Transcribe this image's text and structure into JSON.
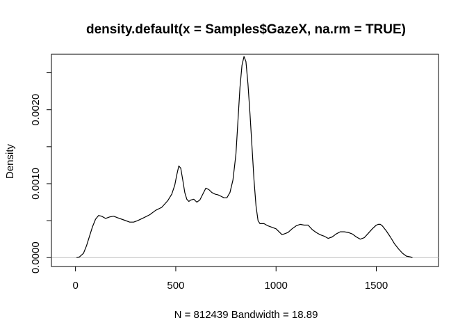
{
  "chart_data": {
    "type": "line",
    "title": "density.default(x = Samples$GazeX, na.rm = TRUE)",
    "xlabel": "N = 812439   Bandwidth = 18.89",
    "ylabel": "Density",
    "xlim": [
      -120,
      1810
    ],
    "ylim": [
      -0.00012,
      0.00275
    ],
    "x_ticks": [
      0,
      500,
      1000,
      1500
    ],
    "x_tick_labels": [
      "0",
      "500",
      "1000",
      "1500"
    ],
    "y_ticks": [
      0.0,
      0.0005,
      0.001,
      0.0015,
      0.002,
      0.0025
    ],
    "y_tick_labels": [
      "0.0000",
      "",
      "0.0010",
      "",
      "0.0020",
      ""
    ],
    "baseline": 0,
    "grid": false,
    "line_color": "#000000",
    "baseline_color": "#bebebe",
    "series": [
      {
        "x": [
          5,
          20,
          40,
          55,
          70,
          85,
          100,
          115,
          130,
          150,
          170,
          190,
          210,
          240,
          270,
          290,
          310,
          340,
          370,
          400,
          430,
          460,
          480,
          495,
          505,
          515,
          525,
          535,
          545,
          555,
          565,
          575,
          590,
          605,
          620,
          635,
          650,
          665,
          680,
          695,
          710,
          725,
          740,
          755,
          770,
          785,
          800,
          810,
          820,
          830,
          840,
          850,
          860,
          870,
          880,
          890,
          900,
          910,
          920,
          940,
          960,
          980,
          1000,
          1030,
          1060,
          1080,
          1100,
          1120,
          1140,
          1160,
          1180,
          1200,
          1220,
          1240,
          1260,
          1280,
          1300,
          1320,
          1340,
          1360,
          1380,
          1400,
          1420,
          1440,
          1460,
          1480,
          1500,
          1510,
          1520,
          1530,
          1550,
          1570,
          1590,
          1610,
          1630,
          1650,
          1670,
          1680
        ],
        "y": [
          0.0,
          1e-05,
          6e-05,
          0.00016,
          0.00029,
          0.00042,
          0.00052,
          0.00057,
          0.00056,
          0.00053,
          0.00055,
          0.00056,
          0.00054,
          0.00051,
          0.00048,
          0.00048,
          0.0005,
          0.00054,
          0.00058,
          0.00064,
          0.00068,
          0.00077,
          0.00086,
          0.00098,
          0.00112,
          0.00124,
          0.00121,
          0.00105,
          0.00088,
          0.00079,
          0.00076,
          0.00078,
          0.00079,
          0.00075,
          0.00078,
          0.00086,
          0.00094,
          0.00092,
          0.00088,
          0.00086,
          0.00085,
          0.00083,
          0.00081,
          0.00081,
          0.00088,
          0.00105,
          0.0014,
          0.00185,
          0.0023,
          0.0026,
          0.00272,
          0.00265,
          0.00235,
          0.00195,
          0.0015,
          0.00105,
          0.0007,
          0.0005,
          0.00046,
          0.00046,
          0.00043,
          0.00041,
          0.00039,
          0.00031,
          0.00034,
          0.00039,
          0.00043,
          0.00045,
          0.00044,
          0.00044,
          0.00038,
          0.00034,
          0.00031,
          0.00029,
          0.00026,
          0.00028,
          0.00032,
          0.00035,
          0.00035,
          0.00034,
          0.00032,
          0.00028,
          0.00025,
          0.00027,
          0.00033,
          0.00039,
          0.00044,
          0.00045,
          0.00045,
          0.00043,
          0.00036,
          0.00028,
          0.00019,
          0.00012,
          6e-05,
          2e-05,
          1e-05,
          0.0
        ]
      }
    ]
  }
}
